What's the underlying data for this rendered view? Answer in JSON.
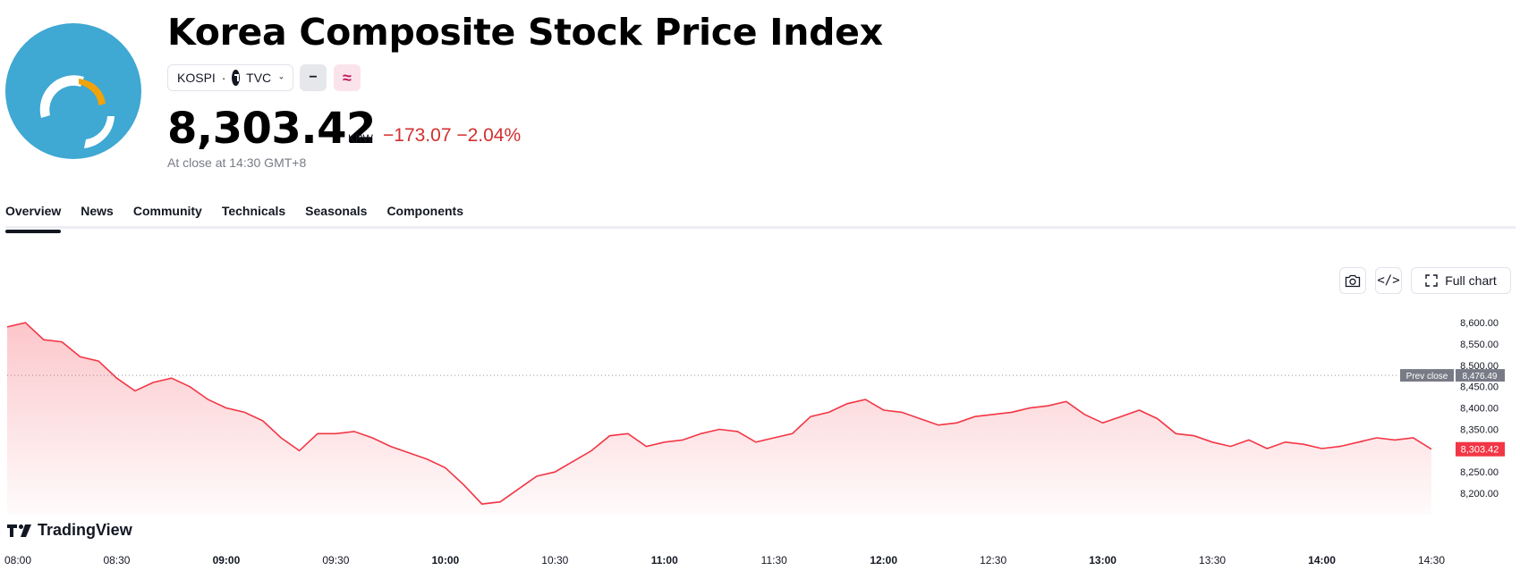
{
  "header": {
    "title": "Korea Composite Stock Price Index",
    "symbol": "KOSPI",
    "separator": "·",
    "exchange": "TVC",
    "flag_minus": "−",
    "flag_approx": "≈",
    "price": "8,303.42",
    "currency": "KRW",
    "change": "−173.07",
    "change_percent": "−2.04%",
    "close_note": "At close at 14:30 GMT+8"
  },
  "tabs": [
    "Overview",
    "News",
    "Community",
    "Technicals",
    "Seasonals",
    "Components"
  ],
  "toolbar": {
    "full_chart_label": "Full chart",
    "code_label": "</>"
  },
  "brand": {
    "name": "TradingView"
  },
  "colors": {
    "line": "#f23645",
    "fill": "#f23645",
    "logo_bg": "#3fa8d3",
    "logo_accent": "#f0a30a",
    "down": "#d32f2f"
  },
  "chart_data": {
    "type": "area",
    "x_labels": [
      "08:00",
      "08:30",
      "09:00",
      "09:30",
      "10:00",
      "10:30",
      "11:00",
      "11:30",
      "12:00",
      "12:30",
      "13:00",
      "13:30",
      "14:00",
      "14:30"
    ],
    "major_x_labels": [
      "09:00",
      "10:00",
      "11:00",
      "12:00",
      "13:00",
      "14:00"
    ],
    "y_ticks": [
      "8,200.00",
      "8,250.00",
      "8,300.00",
      "8,350.00",
      "8,400.00",
      "8,450.00",
      "8,500.00",
      "8,550.00",
      "8,600.00"
    ],
    "ylim": [
      8150,
      8640
    ],
    "prev_close": {
      "label": "Prev close",
      "value": 8476.49,
      "value_text": "8,476.49"
    },
    "last": {
      "value": 8303.42,
      "value_text": "8,303.42"
    },
    "series": [
      {
        "x": [
          "08:00",
          "08:05",
          "08:10",
          "08:15",
          "08:20",
          "08:25",
          "08:30",
          "08:35",
          "08:40",
          "08:45",
          "08:50",
          "08:55",
          "09:00",
          "09:05",
          "09:10",
          "09:15",
          "09:20",
          "09:25",
          "09:30",
          "09:35",
          "09:40",
          "09:45",
          "09:50",
          "09:55",
          "10:00",
          "10:05",
          "10:10",
          "10:15",
          "10:20",
          "10:25",
          "10:30",
          "10:35",
          "10:40",
          "10:45",
          "10:50",
          "10:55",
          "11:00",
          "11:05",
          "11:10",
          "11:15",
          "11:20",
          "11:25",
          "11:30",
          "11:35",
          "11:40",
          "11:45",
          "11:50",
          "11:55",
          "12:00",
          "12:05",
          "12:10",
          "12:15",
          "12:20",
          "12:25",
          "12:30",
          "12:35",
          "12:40",
          "12:45",
          "12:50",
          "12:55",
          "13:00",
          "13:05",
          "13:10",
          "13:15",
          "13:20",
          "13:25",
          "13:30",
          "13:35",
          "13:40",
          "13:45",
          "13:50",
          "13:55",
          "14:00",
          "14:05",
          "14:10",
          "14:15",
          "14:20",
          "14:25",
          "14:30"
        ],
        "values": [
          8590,
          8600,
          8560,
          8555,
          8520,
          8510,
          8470,
          8440,
          8460,
          8470,
          8450,
          8420,
          8400,
          8390,
          8370,
          8330,
          8300,
          8340,
          8340,
          8345,
          8330,
          8310,
          8295,
          8280,
          8260,
          8220,
          8175,
          8180,
          8210,
          8240,
          8250,
          8275,
          8300,
          8335,
          8340,
          8310,
          8320,
          8325,
          8340,
          8350,
          8345,
          8320,
          8330,
          8340,
          8380,
          8390,
          8410,
          8420,
          8395,
          8390,
          8375,
          8360,
          8365,
          8380,
          8385,
          8390,
          8400,
          8405,
          8415,
          8385,
          8365,
          8380,
          8395,
          8375,
          8340,
          8335,
          8320,
          8310,
          8325,
          8305,
          8320,
          8315,
          8305,
          8310,
          8320,
          8330,
          8325,
          8330,
          8303.42
        ]
      }
    ]
  }
}
